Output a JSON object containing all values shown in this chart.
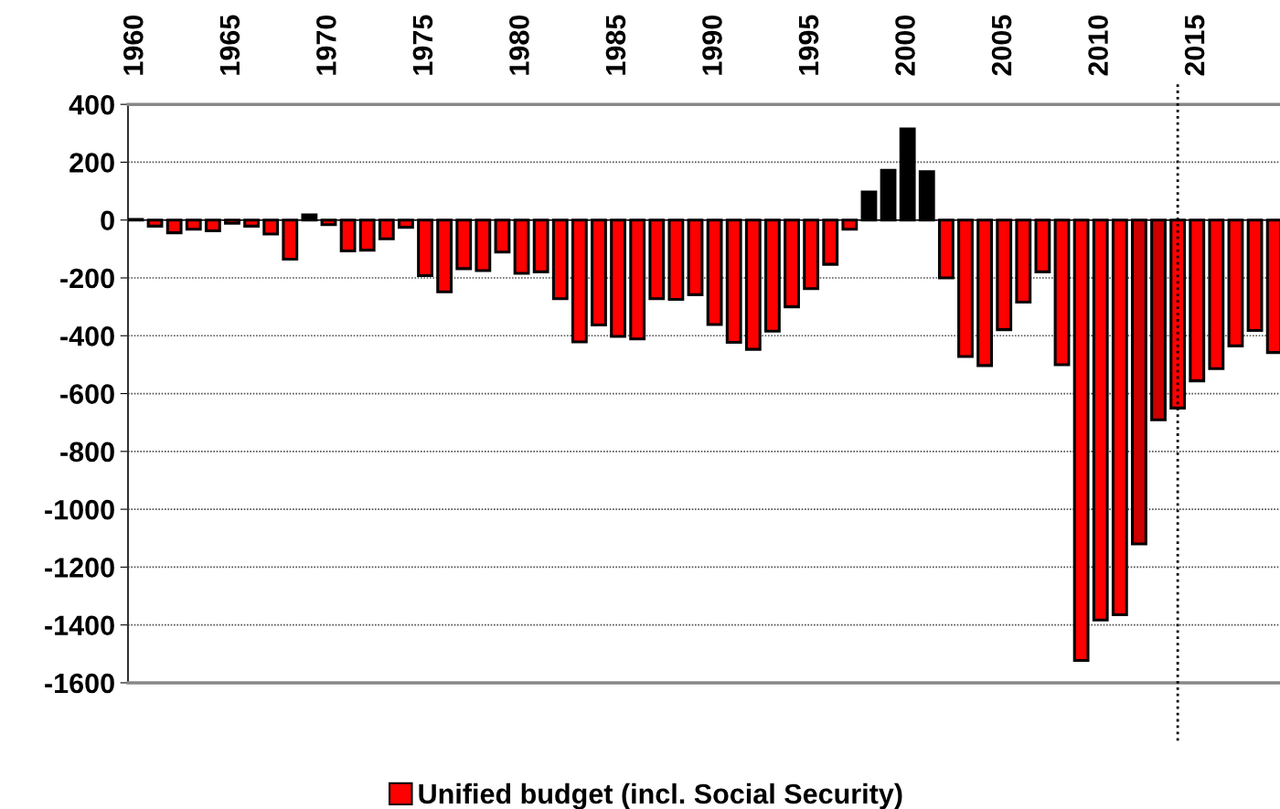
{
  "chart_data": {
    "type": "bar",
    "x": [
      1960,
      1961,
      1962,
      1963,
      1964,
      1965,
      1966,
      1967,
      1968,
      1969,
      1970,
      1971,
      1972,
      1973,
      1974,
      1975,
      1976,
      1977,
      1978,
      1979,
      1980,
      1981,
      1982,
      1983,
      1984,
      1985,
      1986,
      1987,
      1988,
      1989,
      1990,
      1991,
      1992,
      1993,
      1994,
      1995,
      1996,
      1997,
      1998,
      1999,
      2000,
      2001,
      2002,
      2003,
      2004,
      2005,
      2006,
      2007,
      2008,
      2009,
      2010,
      2011,
      2012,
      2013,
      2014,
      2015,
      2016,
      2017,
      2018,
      2019
    ],
    "series": [
      {
        "name": "Unified budget (incl. Social Security)",
        "color": "#ff0000",
        "values": [
          2,
          -21,
          -44,
          -32,
          -37,
          -11,
          -21,
          -48,
          -135,
          18,
          -16,
          -107,
          -104,
          -65,
          -25,
          -192,
          -248,
          -168,
          -175,
          -111,
          -184,
          -179,
          -272,
          -421,
          -363,
          -402,
          -411,
          -272,
          -274,
          -258,
          -361,
          -423,
          -447,
          -384,
          -300,
          -237,
          -153,
          -32,
          97,
          172,
          315,
          167,
          -200,
          -472,
          -503,
          -379,
          -284,
          -179,
          -500,
          -1523,
          -1383,
          -1365,
          -1120,
          -691,
          -650,
          -556,
          -514,
          -435,
          -382,
          -458
        ],
        "colors": [
          "#000000",
          "#ff0000",
          "#ff0000",
          "#ff0000",
          "#ff0000",
          "#ff0000",
          "#ff0000",
          "#ff0000",
          "#ff0000",
          "#000000",
          "#ff0000",
          "#ff0000",
          "#ff0000",
          "#ff0000",
          "#ff0000",
          "#ff0000",
          "#ff0000",
          "#ff0000",
          "#ff0000",
          "#ff0000",
          "#ff0000",
          "#ff0000",
          "#ff0000",
          "#ff0000",
          "#ff0000",
          "#ff0000",
          "#ff0000",
          "#ff0000",
          "#ff0000",
          "#ff0000",
          "#ff0000",
          "#ff0000",
          "#ff0000",
          "#ff0000",
          "#ff0000",
          "#ff0000",
          "#ff0000",
          "#ff0000",
          "#000000",
          "#000000",
          "#000000",
          "#000000",
          "#ff0000",
          "#ff0000",
          "#ff0000",
          "#ff0000",
          "#ff0000",
          "#ff0000",
          "#ff0000",
          "#ff0000",
          "#ff0000",
          "#ff0000",
          "#cc0000",
          "#cc0000",
          "#ff0000",
          "#ff0000",
          "#ff0000",
          "#ff0000",
          "#ff0000",
          "#ff0000"
        ]
      }
    ],
    "xlim": [
      1959.6,
      2019.3
    ],
    "xticks": [
      1960,
      1965,
      1970,
      1975,
      1980,
      1985,
      1990,
      1995,
      2000,
      2005,
      2010,
      2015
    ],
    "ylim": [
      -1600,
      400
    ],
    "yticks": [
      400,
      200,
      0,
      -200,
      -400,
      -600,
      -800,
      -1000,
      -1200,
      -1400,
      -1600
    ],
    "grid": "y",
    "legend": "bottom",
    "ref_lines": [
      {
        "axis": "x",
        "value": 2014,
        "color": "#000000",
        "line_style": "dotted"
      }
    ]
  }
}
